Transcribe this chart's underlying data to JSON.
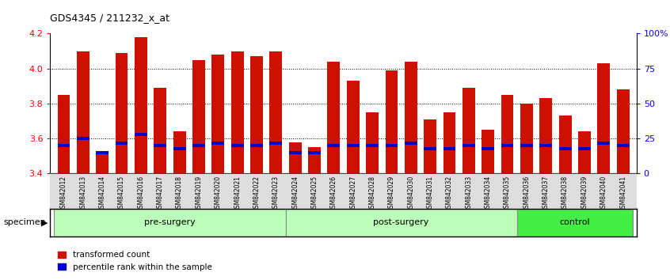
{
  "title": "GDS4345 / 211232_x_at",
  "samples": [
    "GSM842012",
    "GSM842013",
    "GSM842014",
    "GSM842015",
    "GSM842016",
    "GSM842017",
    "GSM842018",
    "GSM842019",
    "GSM842020",
    "GSM842021",
    "GSM842022",
    "GSM842023",
    "GSM842024",
    "GSM842025",
    "GSM842026",
    "GSM842027",
    "GSM842028",
    "GSM842029",
    "GSM842030",
    "GSM842031",
    "GSM842032",
    "GSM842033",
    "GSM842034",
    "GSM842035",
    "GSM842036",
    "GSM842037",
    "GSM842038",
    "GSM842039",
    "GSM842040",
    "GSM842041"
  ],
  "transformed_count": [
    3.85,
    4.1,
    3.53,
    4.09,
    4.18,
    3.89,
    3.64,
    4.05,
    4.08,
    4.1,
    4.07,
    4.1,
    3.58,
    3.55,
    4.04,
    3.93,
    3.75,
    3.99,
    4.04,
    3.71,
    3.75,
    3.89,
    3.65,
    3.85,
    3.8,
    3.83,
    3.73,
    3.64,
    4.03,
    3.88
  ],
  "percentile_rank": [
    20,
    25,
    15,
    22,
    28,
    20,
    18,
    20,
    22,
    20,
    20,
    22,
    15,
    15,
    20,
    20,
    20,
    20,
    22,
    18,
    18,
    20,
    18,
    20,
    20,
    20,
    18,
    18,
    22,
    20
  ],
  "groups": [
    {
      "name": "pre-surgery",
      "start": 0,
      "end": 11,
      "color": "#bbffbb"
    },
    {
      "name": "post-surgery",
      "start": 12,
      "end": 23,
      "color": "#bbffbb"
    },
    {
      "name": "control",
      "start": 24,
      "end": 29,
      "color": "#44ee44"
    }
  ],
  "ylim_left": [
    3.4,
    4.2
  ],
  "ylim_right": [
    0,
    100
  ],
  "bar_color": "#cc1100",
  "blue_color": "#0000cc",
  "yticks_left": [
    3.4,
    3.6,
    3.8,
    4.0,
    4.2
  ],
  "yticks_right": [
    0,
    25,
    50,
    75,
    100
  ],
  "ytick_labels_right": [
    "0",
    "25",
    "50",
    "75",
    "100%"
  ],
  "grid_lines": [
    3.6,
    3.8,
    4.0
  ]
}
